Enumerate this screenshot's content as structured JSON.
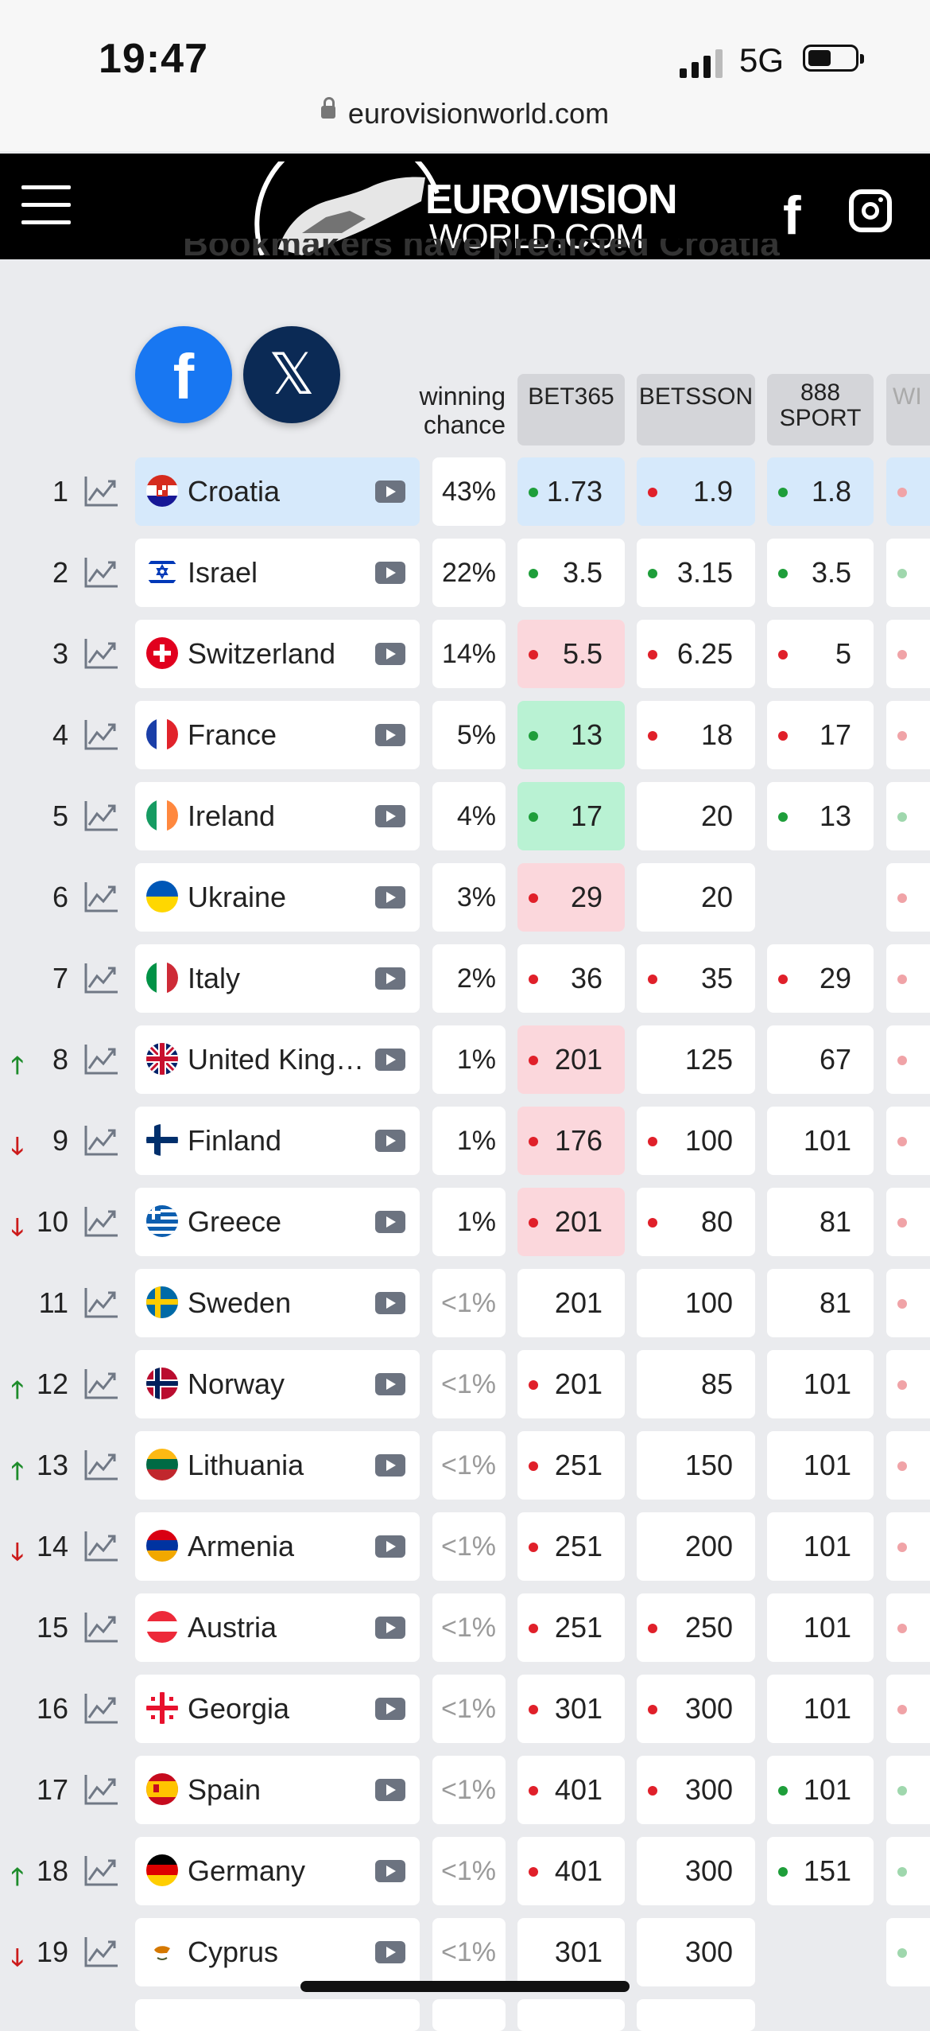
{
  "status": {
    "time": "19:47",
    "network": "5G"
  },
  "browser": {
    "url": "eurovisionworld.com"
  },
  "header": {
    "logo_line1": "EUROVISION",
    "logo_line2": "WORLD.COM"
  },
  "page": {
    "intro_text_clipped": "Bookmakers have predicted Croatia",
    "share_x_glyph": "𝕏"
  },
  "table": {
    "headers": {
      "chance": "winning chance",
      "bookmakers": [
        "BET365",
        "BETSSON",
        "888 SPORT",
        "WI"
      ]
    },
    "rows": [
      {
        "rank": "1",
        "move": "",
        "country": "Croatia",
        "chance": "43%",
        "highlight": true,
        "bet365": {
          "v": "1.73",
          "dot": "g",
          "bg": "hl"
        },
        "betsson": {
          "v": "1.9",
          "dot": "r",
          "bg": "hl"
        },
        "s888": {
          "v": "1.8",
          "dot": "g",
          "bg": "hl"
        },
        "cut": {
          "dot": "r",
          "bg": "hl"
        }
      },
      {
        "rank": "2",
        "move": "",
        "country": "Israel",
        "chance": "22%",
        "bet365": {
          "v": "3.5",
          "dot": "g"
        },
        "betsson": {
          "v": "3.15",
          "dot": "g"
        },
        "s888": {
          "v": "3.5",
          "dot": "g"
        },
        "cut": {
          "dot": "g"
        }
      },
      {
        "rank": "3",
        "move": "",
        "country": "Switzerland",
        "chance": "14%",
        "bet365": {
          "v": "5.5",
          "dot": "r",
          "bg": "pink"
        },
        "betsson": {
          "v": "6.25",
          "dot": "r"
        },
        "s888": {
          "v": "5",
          "dot": "r"
        },
        "cut": {
          "dot": "r"
        }
      },
      {
        "rank": "4",
        "move": "",
        "country": "France",
        "chance": "5%",
        "bet365": {
          "v": "13",
          "dot": "g",
          "bg": "mint"
        },
        "betsson": {
          "v": "18",
          "dot": "r"
        },
        "s888": {
          "v": "17",
          "dot": "r"
        },
        "cut": {
          "dot": "r"
        }
      },
      {
        "rank": "5",
        "move": "",
        "country": "Ireland",
        "chance": "4%",
        "bet365": {
          "v": "17",
          "dot": "g",
          "bg": "mint"
        },
        "betsson": {
          "v": "20"
        },
        "s888": {
          "v": "13",
          "dot": "g"
        },
        "cut": {
          "dot": "g"
        }
      },
      {
        "rank": "6",
        "move": "",
        "country": "Ukraine",
        "chance": "3%",
        "bet365": {
          "v": "29",
          "dot": "r",
          "bg": "pink"
        },
        "betsson": {
          "v": "20"
        },
        "s888": {
          "v": "",
          "bg": "empty"
        },
        "cut": {
          "dot": "r"
        }
      },
      {
        "rank": "7",
        "move": "",
        "country": "Italy",
        "chance": "2%",
        "bet365": {
          "v": "36",
          "dot": "r"
        },
        "betsson": {
          "v": "35",
          "dot": "r"
        },
        "s888": {
          "v": "29",
          "dot": "r"
        },
        "cut": {
          "dot": "r"
        }
      },
      {
        "rank": "8",
        "move": "up",
        "country": "United Kingd…",
        "chance": "1%",
        "bet365": {
          "v": "201",
          "dot": "r",
          "bg": "pink"
        },
        "betsson": {
          "v": "125"
        },
        "s888": {
          "v": "67"
        },
        "cut": {
          "dot": "r"
        }
      },
      {
        "rank": "9",
        "move": "down",
        "country": "Finland",
        "chance": "1%",
        "bet365": {
          "v": "176",
          "dot": "r",
          "bg": "pink"
        },
        "betsson": {
          "v": "100",
          "dot": "r"
        },
        "s888": {
          "v": "101"
        },
        "cut": {
          "dot": "r"
        }
      },
      {
        "rank": "10",
        "move": "down",
        "country": "Greece",
        "chance": "1%",
        "bet365": {
          "v": "201",
          "dot": "r",
          "bg": "pink"
        },
        "betsson": {
          "v": "80",
          "dot": "r"
        },
        "s888": {
          "v": "81"
        },
        "cut": {
          "dot": "r"
        }
      },
      {
        "rank": "11",
        "move": "",
        "country": "Sweden",
        "chance": "<1%",
        "dim": true,
        "bet365": {
          "v": "201"
        },
        "betsson": {
          "v": "100"
        },
        "s888": {
          "v": "81"
        },
        "cut": {
          "dot": "r"
        }
      },
      {
        "rank": "12",
        "move": "up",
        "country": "Norway",
        "chance": "<1%",
        "dim": true,
        "bet365": {
          "v": "201",
          "dot": "r"
        },
        "betsson": {
          "v": "85"
        },
        "s888": {
          "v": "101"
        },
        "cut": {
          "dot": "r"
        }
      },
      {
        "rank": "13",
        "move": "up",
        "country": "Lithuania",
        "chance": "<1%",
        "dim": true,
        "bet365": {
          "v": "251",
          "dot": "r"
        },
        "betsson": {
          "v": "150"
        },
        "s888": {
          "v": "101"
        },
        "cut": {
          "dot": "r"
        }
      },
      {
        "rank": "14",
        "move": "down",
        "country": "Armenia",
        "chance": "<1%",
        "dim": true,
        "bet365": {
          "v": "251",
          "dot": "r"
        },
        "betsson": {
          "v": "200"
        },
        "s888": {
          "v": "101"
        },
        "cut": {
          "dot": "r"
        }
      },
      {
        "rank": "15",
        "move": "",
        "country": "Austria",
        "chance": "<1%",
        "dim": true,
        "bet365": {
          "v": "251",
          "dot": "r"
        },
        "betsson": {
          "v": "250",
          "dot": "r"
        },
        "s888": {
          "v": "101"
        },
        "cut": {
          "dot": "r"
        }
      },
      {
        "rank": "16",
        "move": "",
        "country": "Georgia",
        "chance": "<1%",
        "dim": true,
        "bet365": {
          "v": "301",
          "dot": "r"
        },
        "betsson": {
          "v": "300",
          "dot": "r"
        },
        "s888": {
          "v": "101"
        },
        "cut": {
          "dot": "r"
        }
      },
      {
        "rank": "17",
        "move": "",
        "country": "Spain",
        "chance": "<1%",
        "dim": true,
        "bet365": {
          "v": "401",
          "dot": "r"
        },
        "betsson": {
          "v": "300",
          "dot": "r"
        },
        "s888": {
          "v": "101",
          "dot": "g"
        },
        "cut": {
          "dot": "g"
        }
      },
      {
        "rank": "18",
        "move": "up",
        "country": "Germany",
        "chance": "<1%",
        "dim": true,
        "bet365": {
          "v": "401",
          "dot": "r"
        },
        "betsson": {
          "v": "300"
        },
        "s888": {
          "v": "151",
          "dot": "g"
        },
        "cut": {
          "dot": "g"
        }
      },
      {
        "rank": "19",
        "move": "down",
        "country": "Cyprus",
        "chance": "<1%",
        "dim": true,
        "bet365": {
          "v": "301"
        },
        "betsson": {
          "v": "300"
        },
        "s888": {
          "v": "",
          "bg": "empty"
        },
        "cut": {
          "dot": "g"
        }
      }
    ]
  }
}
